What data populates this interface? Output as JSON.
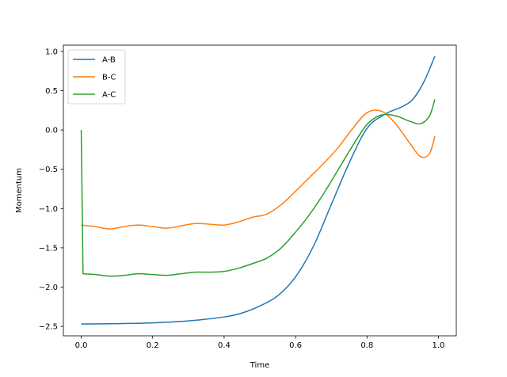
{
  "chart_data": {
    "type": "line",
    "xlabel": "Time",
    "ylabel": "Momentum",
    "xlim": [
      -0.05,
      1.05
    ],
    "ylim": [
      -2.62,
      1.08
    ],
    "x_ticks": [
      0.0,
      0.2,
      0.4,
      0.6,
      0.8,
      1.0
    ],
    "x_tick_labels": [
      "0.0",
      "0.2",
      "0.4",
      "0.6",
      "0.8",
      "1.0"
    ],
    "y_ticks": [
      1.0,
      0.5,
      0.0,
      -0.5,
      -1.0,
      -1.5,
      -2.0,
      -2.5
    ],
    "y_tick_labels": [
      "1.0",
      "0.5",
      "0.0",
      "−0.5",
      "−1.0",
      "−1.5",
      "−2.0",
      "−2.5"
    ],
    "grid": false,
    "legend_position": "top-left",
    "series": [
      {
        "name": "A-B",
        "color": "#1f77b4",
        "x": [
          0.0,
          0.1,
          0.2,
          0.3,
          0.4,
          0.45,
          0.5,
          0.55,
          0.6,
          0.65,
          0.7,
          0.75,
          0.8,
          0.85,
          0.9,
          0.93,
          0.96,
          0.99
        ],
        "y": [
          -2.47,
          -2.465,
          -2.455,
          -2.43,
          -2.38,
          -2.33,
          -2.24,
          -2.11,
          -1.87,
          -1.48,
          -0.95,
          -0.42,
          0.02,
          0.2,
          0.3,
          0.4,
          0.62,
          0.94
        ]
      },
      {
        "name": "B-C",
        "color": "#ff7f0e",
        "x": [
          0.0,
          0.04,
          0.08,
          0.12,
          0.16,
          0.2,
          0.24,
          0.28,
          0.32,
          0.36,
          0.4,
          0.44,
          0.48,
          0.52,
          0.56,
          0.6,
          0.64,
          0.68,
          0.72,
          0.76,
          0.8,
          0.84,
          0.88,
          0.92,
          0.95,
          0.975,
          0.99
        ],
        "y": [
          -1.21,
          -1.23,
          -1.26,
          -1.23,
          -1.21,
          -1.23,
          -1.25,
          -1.22,
          -1.19,
          -1.2,
          -1.21,
          -1.17,
          -1.11,
          -1.07,
          -0.95,
          -0.78,
          -0.6,
          -0.42,
          -0.22,
          0.02,
          0.22,
          0.24,
          0.08,
          -0.17,
          -0.34,
          -0.3,
          -0.08
        ]
      },
      {
        "name": "A-C",
        "color": "#2ca02c",
        "x": [
          0.0,
          0.005,
          0.04,
          0.08,
          0.12,
          0.16,
          0.2,
          0.24,
          0.28,
          0.32,
          0.36,
          0.4,
          0.44,
          0.48,
          0.52,
          0.56,
          0.6,
          0.64,
          0.68,
          0.72,
          0.76,
          0.8,
          0.84,
          0.88,
          0.92,
          0.95,
          0.975,
          0.99
        ],
        "y": [
          0.0,
          -1.83,
          -1.84,
          -1.86,
          -1.85,
          -1.83,
          -1.84,
          -1.85,
          -1.83,
          -1.81,
          -1.81,
          -1.8,
          -1.76,
          -1.7,
          -1.63,
          -1.5,
          -1.3,
          -1.07,
          -0.8,
          -0.5,
          -0.2,
          0.07,
          0.19,
          0.18,
          0.11,
          0.08,
          0.18,
          0.39
        ]
      }
    ]
  }
}
